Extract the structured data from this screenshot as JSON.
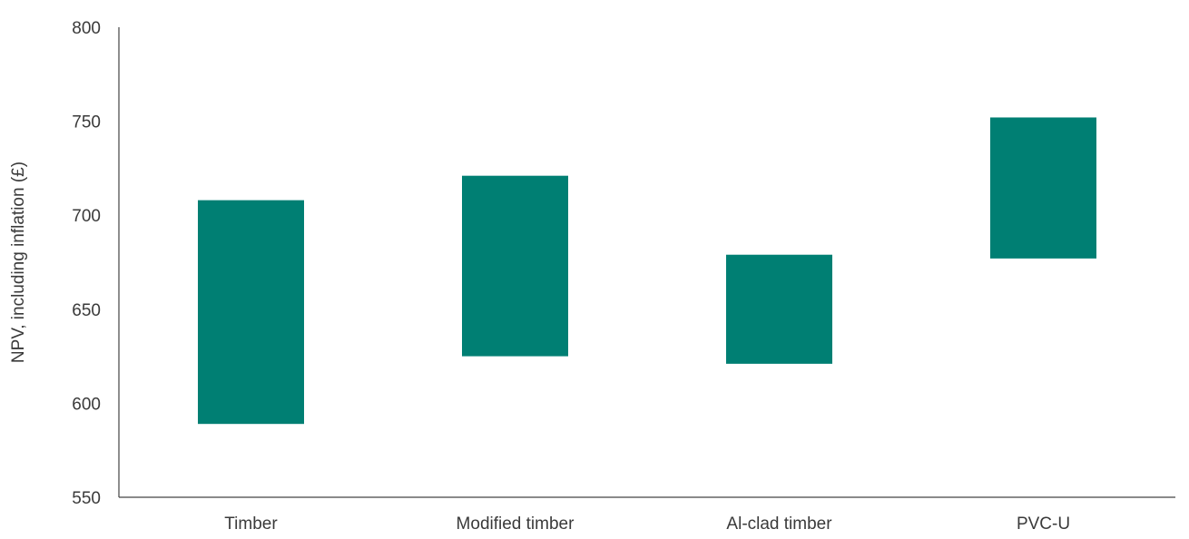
{
  "chart_data": {
    "type": "bar",
    "subtype": "floating-range",
    "title": "",
    "xlabel": "",
    "ylabel": "NPV, including inflation (£)",
    "ylim": [
      550,
      800
    ],
    "yticks": [
      550,
      600,
      650,
      700,
      750,
      800
    ],
    "grid": false,
    "legend": "none",
    "categories": [
      "Timber",
      "Modified timber",
      "Al-clad timber",
      "PVC-U"
    ],
    "series": [
      {
        "low": [
          589,
          625,
          621,
          677
        ],
        "high": [
          708,
          721,
          679,
          752
        ]
      }
    ],
    "colors": {
      "bar": "#007f73",
      "axis": "#444444",
      "text": "#3a3a3a"
    }
  }
}
